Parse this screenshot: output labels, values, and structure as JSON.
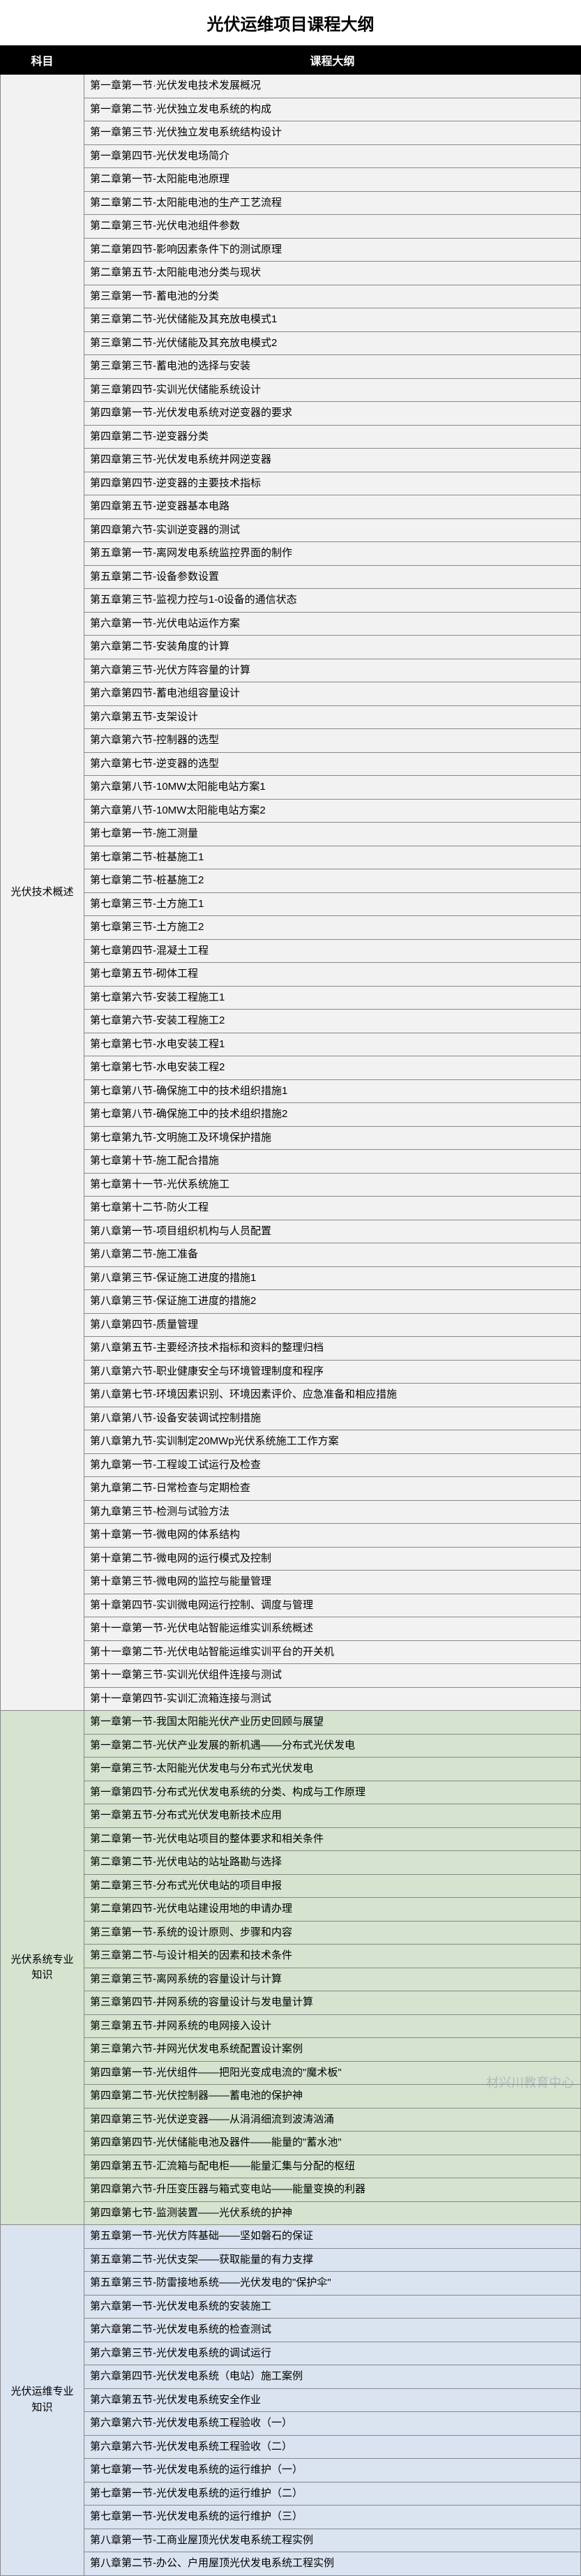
{
  "title": "光伏运维项目课程大纲",
  "headers": {
    "subject": "科目",
    "outline": "课程大纲"
  },
  "watermark": "材兴川教育中心",
  "sections": [
    {
      "subject": "光伏技术概述",
      "bgClass": "section-1",
      "items": [
        "第一章第一节·光伏发电技术发展概况",
        "第一章第二节·光伏独立发电系统的构成",
        "第一章第三节·光伏独立发电系统结构设计",
        "第一章第四节-光伏发电场简介",
        "第二章第一节-太阳能电池原理",
        "第二章第二节-太阳能电池的生产工艺流程",
        "第二章第三节-光伏电池组件参数",
        "第二章第四节-影响因素条件下的测试原理",
        "第二章第五节-太阳能电池分类与现状",
        "第三章第一节-蓄电池的分类",
        "第三章第二节-光伏储能及其充放电模式1",
        "第三章第二节-光伏储能及其充放电模式2",
        "第三章第三节-蓄电池的选择与安装",
        "第三章第四节-实训光伏储能系统设计",
        "第四章第一节-光伏发电系统对逆变器的要求",
        "第四章第二节-逆变器分类",
        "第四章第三节-光伏发电系统并网逆变器",
        "第四章第四节-逆变器的主要技术指标",
        "第四章第五节-逆变器基本电路",
        "第四章第六节-实训逆变器的测试",
        "第五章第一节-离网发电系统监控界面的制作",
        "第五章第二节-设备参数设置",
        "第五章第三节-监视力控与1-0设备的通信状态",
        "第六章第一节-光伏电站运作方案",
        "第六章第二节-安装角度的计算",
        "第六章第三节-光伏方阵容量的计算",
        "第六章第四节-蓄电池组容量设计",
        "第六章第五节-支架设计",
        "第六章第六节-控制器的选型",
        "第六章第七节-逆变器的选型",
        "第六章第八节-10MW太阳能电站方案1",
        "第六章第八节-10MW太阳能电站方案2",
        "第七章第一节-施工测量",
        "第七章第二节-桩基施工1",
        "第七章第二节-桩基施工2",
        "第七章第三节-土方施工1",
        "第七章第三节-土方施工2",
        "第七章第四节-混凝土工程",
        "第七章第五节-砌体工程",
        "第七章第六节-安装工程施工1",
        "第七章第六节-安装工程施工2",
        "第七章第七节-水电安装工程1",
        "第七章第七节-水电安装工程2",
        "第七章第八节-确保施工中的技术组织措施1",
        "第七章第八节-确保施工中的技术组织措施2",
        "第七章第九节-文明施工及环境保护措施",
        "第七章第十节-施工配合措施",
        "第七章第十一节-光伏系统施工",
        "第七章第十二节-防火工程",
        "第八章第一节-项目组织机构与人员配置",
        "第八章第二节-施工准备",
        "第八章第三节-保证施工进度的措施1",
        "第八章第三节-保证施工进度的措施2",
        "第八章第四节-质量管理",
        "第八章第五节-主要经济技术指标和资料的整理归档",
        "第八章第六节-职业健康安全与环境管理制度和程序",
        "第八章第七节-环境因素识别、环境因素评价、应急准备和相应措施",
        "第八章第八节-设备安装调试控制措施",
        "第八章第九节-实训制定20MWp光伏系统施工工作方案",
        "第九章第一节-工程竣工试运行及检查",
        "第九章第二节-日常检查与定期检查",
        "第九章第三节-检测与试验方法",
        "第十章第一节-微电网的体系结构",
        "第十章第二节-微电网的运行模式及控制",
        "第十章第三节-微电网的监控与能量管理",
        "第十章第四节-实训微电网运行控制、调度与管理",
        "第十一章第一节-光伏电站智能运维实训系统概述",
        "第十一章第二节-光伏电站智能运维实训平台的开关机",
        "第十一章第三节-实训光伏组件连接与测试",
        "第十一章第四节-实训汇流箱连接与测试"
      ]
    },
    {
      "subject": "光伏系统专业知识",
      "bgClass": "section-2",
      "items": [
        "第一章第一节-我国太阳能光伏产业历史回顾与展望",
        "第一章第二节-光伏产业发展的新机遇——分布式光伏发电",
        "第一章第三节-太阳能光伏发电与分布式光伏发电",
        "第一章第四节-分布式光伏发电系统的分类、构成与工作原理",
        "第一章第五节-分布式光伏发电新技术应用",
        "第二章第一节-光伏电站项目的整体要求和相关条件",
        "第二章第二节-光伏电站的站址路勘与选择",
        "第二章第三节-分布式光伏电站的项目申报",
        "第二章第四节-光伏电站建设用地的申请办理",
        "第三章第一节-系统的设计原则、步骤和内容",
        "第三章第二节-与设计相关的因素和技术条件",
        "第三章第三节-离网系统的容量设计与计算",
        "第三章第四节-并网系统的容量设计与发电量计算",
        "第三章第五节-并网系统的电网接入设计",
        "第三章第六节-并网光伏发电系统配置设计案例",
        "第四章第一节-光伏组件——把阳光变成电流的\"魔术板\"",
        "第四章第二节-光伏控制器——蓄电池的保护神",
        "第四章第三节-光伏逆变器——从涓涓细流到波涛汹涌",
        "第四章第四节-光伏储能电池及器件——能量的\"蓄水池\"",
        "第四章第五节-汇流箱与配电柜——能量汇集与分配的枢纽",
        "第四章第六节-升压变压器与箱式变电站——能量变换的利器",
        "第四章第七节-监测装置——光伏系统的护神"
      ]
    },
    {
      "subject": "光伏运维专业知识",
      "bgClass": "section-3",
      "items": [
        "第五章第一节-光伏方阵基础——坚如磐石的保证",
        "第五章第二节-光伏支架——获取能量的有力支撑",
        "第五章第三节-防雷接地系统——光伏发电的\"保护伞\"",
        "第六章第一节-光伏发电系统的安装施工",
        "第六章第二节-光伏发电系统的检查测试",
        "第六章第三节-光伏发电系统的调试运行",
        "第六章第四节-光伏发电系统（电站）施工案例",
        "第六章第五节-光伏发电系统安全作业",
        "第六章第六节-光伏发电系统工程验收（一）",
        "第六章第六节-光伏发电系统工程验收（二）",
        "第七章第一节-光伏发电系统的运行维护（一）",
        "第七章第一节-光伏发电系统的运行维护（二）",
        "第七章第一节-光伏发电系统的运行维护（三）",
        "第八章第一节-工商业屋顶光伏发电系统工程实例",
        "第八章第二节-办公、户用屋顶光伏发电系统工程实例"
      ]
    }
  ]
}
